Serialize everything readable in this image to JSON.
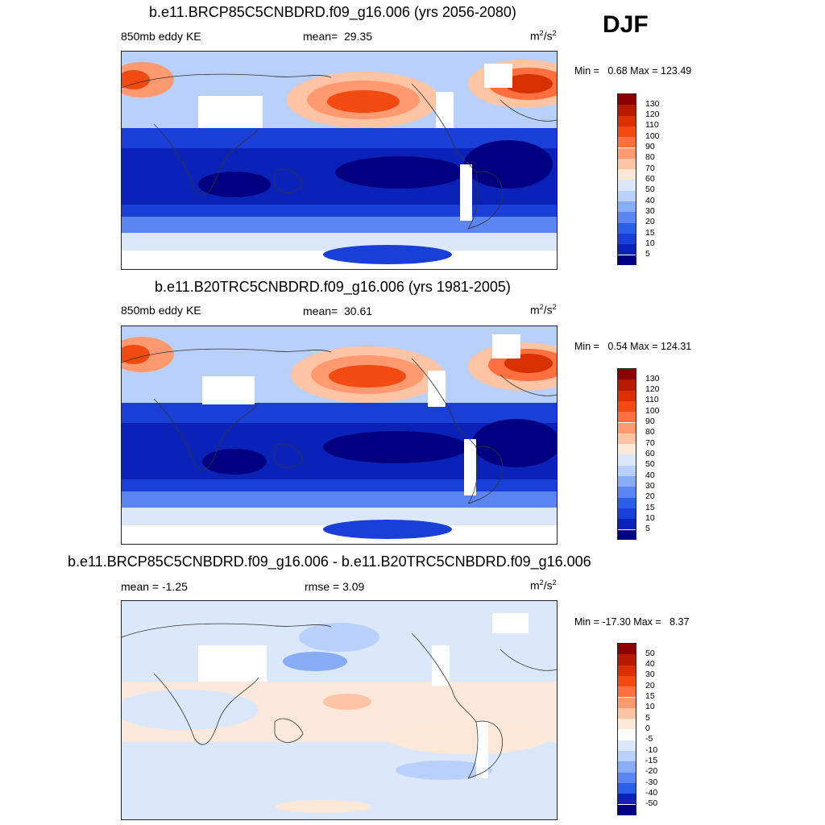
{
  "season": "DJF",
  "units_base": "m",
  "units_mid": "2",
  "units_sep": "/s",
  "units_sup": "2",
  "panels": [
    {
      "title": "b.e11.BRCP85C5CNBDRD.f09_g16.006 (yrs 2056-2080)",
      "left_label": "850mb eddy KE",
      "mean_label": "mean=",
      "mean_value": "29.35",
      "minmax": "Min =   0.68 Max = 123.49"
    },
    {
      "title": "b.e11.B20TRC5CNBDRD.f09_g16.006 (yrs 1981-2005)",
      "left_label": "850mb eddy KE",
      "mean_label": "mean=",
      "mean_value": "30.61",
      "minmax": "Min =   0.54 Max = 124.31"
    },
    {
      "title": "b.e11.BRCP85C5CNBDRD.f09_g16.006 - b.e11.B20TRC5CNBDRD.f09_g16.006",
      "left_label": "mean =  -1.25",
      "center_label": "rmse =   3.09",
      "minmax": "Min = -17.30 Max =   8.37"
    }
  ],
  "colorbars": {
    "field": {
      "labels": [
        "130",
        "120",
        "110",
        "100",
        "90",
        "80",
        "70",
        "60",
        "50",
        "40",
        "30",
        "20",
        "15",
        "10",
        "5"
      ],
      "colors": [
        "#8b0000",
        "#b51a00",
        "#d83000",
        "#f24a10",
        "#ff7040",
        "#ff9a70",
        "#ffc4a4",
        "#fde8d8",
        "#dbe8fb",
        "#b8d0fa",
        "#88acf6",
        "#5b86f2",
        "#2c5ee8",
        "#1a3fd6",
        "#0a22b8",
        "#000080"
      ]
    },
    "diff": {
      "labels": [
        "50",
        "40",
        "30",
        "20",
        "15",
        "10",
        "5",
        "0",
        "-5",
        "-10",
        "-15",
        "-20",
        "-30",
        "-40",
        "-50"
      ],
      "colors": [
        "#8b0000",
        "#b51a00",
        "#d83000",
        "#f24a10",
        "#ff7040",
        "#ff9a70",
        "#ffc4a4",
        "#fde8d8",
        "#ffffff",
        "#dbe8fb",
        "#b8d0fa",
        "#88acf6",
        "#5b86f2",
        "#2c5ee8",
        "#0a22b8",
        "#000080"
      ]
    }
  }
}
